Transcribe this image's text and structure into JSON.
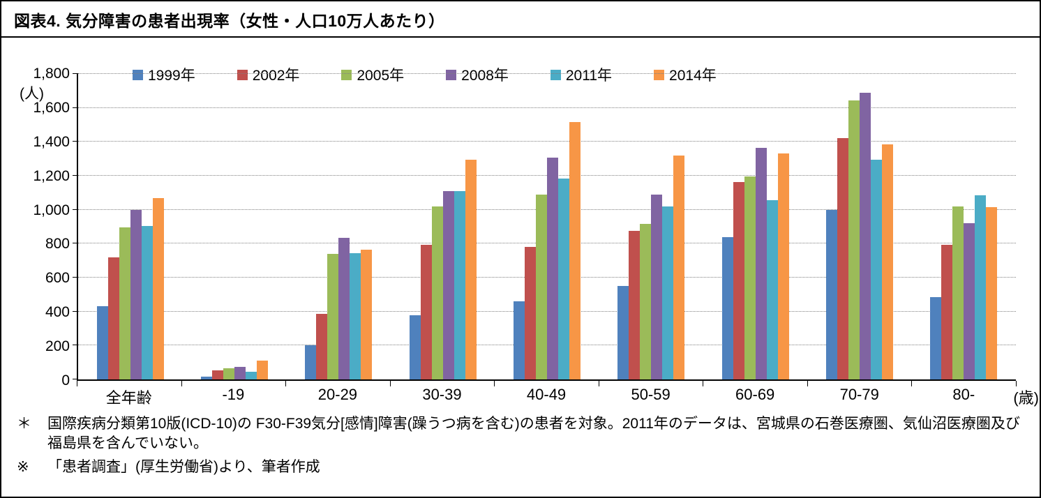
{
  "title": "図表4.  気分障害の患者出現率（女性・人口10万人あたり）",
  "y_unit": "(人)",
  "x_unit": "(歳)",
  "chart_data": {
    "type": "bar",
    "title": "図表4.  気分障害の患者出現率（女性・人口10万人あたり）",
    "categories": [
      "全年齢",
      "-19",
      "20-29",
      "30-39",
      "40-49",
      "50-59",
      "60-69",
      "70-79",
      "80-"
    ],
    "series": [
      {
        "name": "1999年",
        "color": "#4F81BD",
        "values": [
          430,
          15,
          200,
          380,
          460,
          550,
          840,
          1000,
          485
        ]
      },
      {
        "name": "2002年",
        "color": "#C0504D",
        "values": [
          720,
          55,
          385,
          795,
          780,
          875,
          1165,
          1420,
          795
        ]
      },
      {
        "name": "2005年",
        "color": "#9BBB59",
        "values": [
          895,
          65,
          740,
          1020,
          1090,
          915,
          1195,
          1645,
          1020
        ]
      },
      {
        "name": "2008年",
        "color": "#8064A2",
        "values": [
          1000,
          75,
          835,
          1110,
          1305,
          1090,
          1365,
          1690,
          920
        ]
      },
      {
        "name": "2011年",
        "color": "#4BACC6",
        "values": [
          905,
          45,
          745,
          1110,
          1185,
          1020,
          1055,
          1295,
          1085
        ]
      },
      {
        "name": "2014年",
        "color": "#F79646",
        "values": [
          1070,
          110,
          765,
          1295,
          1515,
          1320,
          1330,
          1385,
          1015
        ]
      }
    ],
    "xlabel": "(歳)",
    "ylabel": "(人)",
    "ylim": [
      0,
      1800
    ],
    "ytick_step": 200,
    "grid": true,
    "legend_position": "top"
  },
  "footnotes": [
    {
      "marker": "＊",
      "text": "国際疾病分類第10版(ICD-10)の F30-F39気分[感情]障害(躁うつ病を含む)の患者を対象。2011年のデータは、宮城県の石巻医療圏、気仙沼医療圏及び福島県を含んでいない。"
    },
    {
      "marker": "※",
      "text": "「患者調査」(厚生労働省)より、筆者作成"
    }
  ]
}
